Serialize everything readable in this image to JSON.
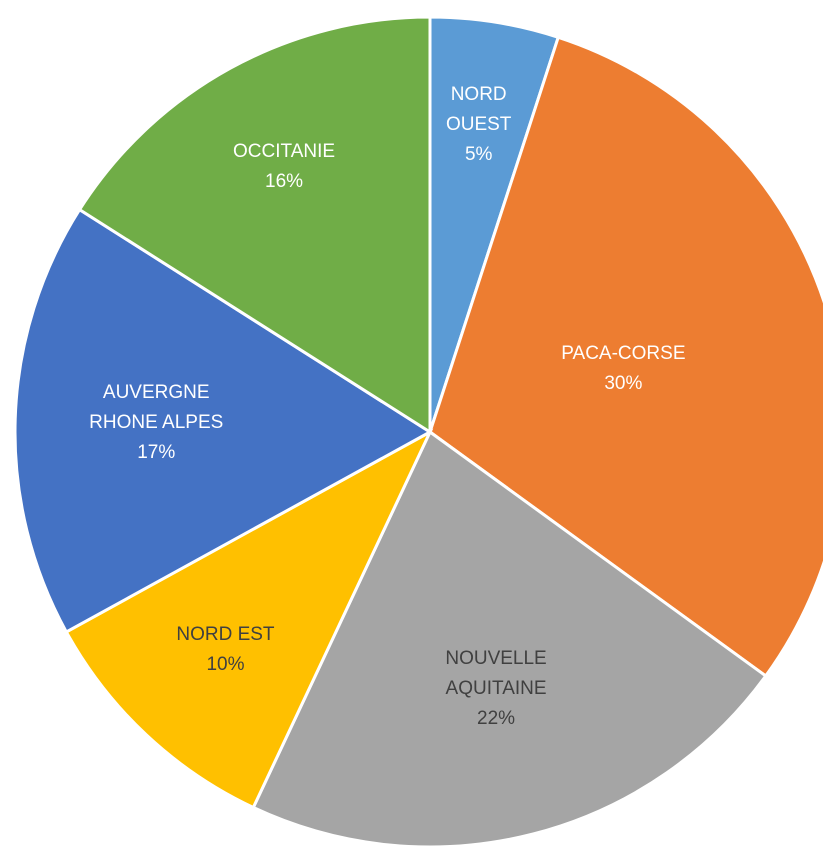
{
  "chart_data": {
    "type": "pie",
    "categories": [
      "NORD\nOUEST",
      "PACA-CORSE",
      "NOUVELLE\nAQUITAINE",
      "NORD EST",
      "AUVERGNE\nRHONE ALPES",
      "OCCITANIE"
    ],
    "values": [
      5,
      30,
      22,
      10,
      17,
      16
    ],
    "value_labels": [
      "5%",
      "30%",
      "22%",
      "10%",
      "17%",
      "16%"
    ],
    "colors": [
      "#5b9bd5",
      "#ed7d31",
      "#a5a5a5",
      "#ffc000",
      "#4472c4",
      "#70ad47"
    ]
  }
}
